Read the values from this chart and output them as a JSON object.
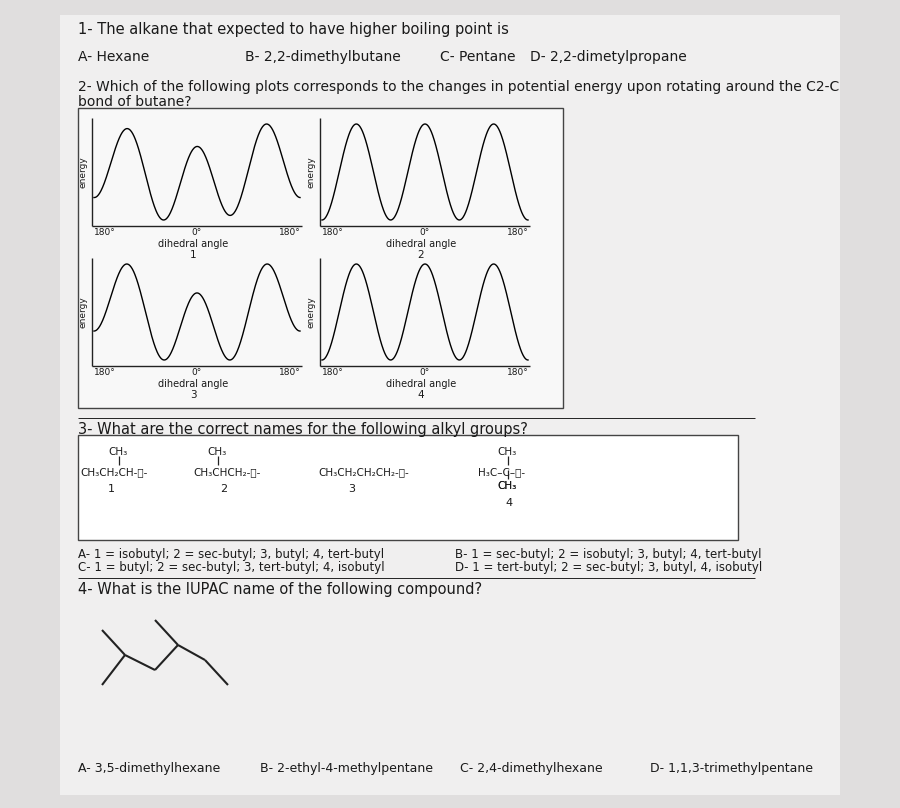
{
  "bg_color": "#e0dede",
  "page_color": "#f0efef",
  "q1_title": "1- The alkane that expected to have higher boiling point is",
  "q1_A": "A- Hexane",
  "q1_B": "B- 2,2-dimethylbutane",
  "q1_C": "C- Pentane",
  "q1_D": "D- 2,2-dimetylpropane",
  "q2_line1": "2- Which of the following plots corresponds to the changes in potential energy upon rotating around the C2-C",
  "q2_line2": "bond of butane?",
  "q3_title": "3- What are the correct names for the following alkyl groups?",
  "q3_A": "A- 1 = isobutyl; 2 = sec-butyl; 3, butyl; 4, tert-butyl",
  "q3_B": "B- 1 = sec-butyl; 2 = isobutyl; 3, butyl; 4, tert-butyl",
  "q3_C": "C- 1 = butyl; 2 = sec-butyl; 3, tert-butyl; 4, isobutyl",
  "q3_D": "D- 1 = tert-butyl; 2 = sec-butyl; 3, butyl, 4, isobutyl",
  "q4_title": "4- What is the IUPAC name of the following compound?",
  "q4_A": "A- 3,5-dimethylhexane",
  "q4_B": "B- 2-ethyl-4-methylpentane",
  "q4_C": "C- 2,4-dimethylhexane",
  "q4_D": "D- 1,1,3-trimethylpentane"
}
